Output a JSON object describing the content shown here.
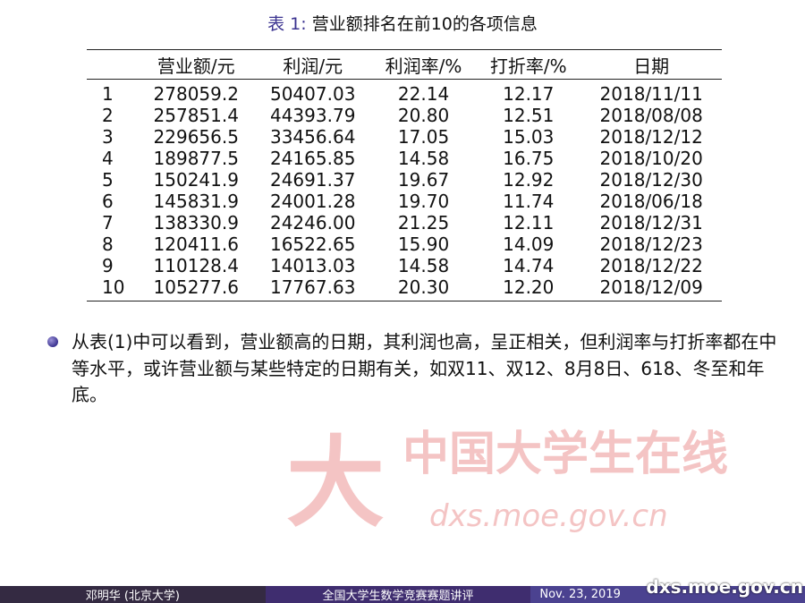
{
  "caption": {
    "label": "表 1:",
    "text": "营业额排名在前10的各项信息"
  },
  "table": {
    "headers": [
      "",
      "营业额/元",
      "利润/元",
      "利润率/%",
      "打折率/%",
      "日期"
    ],
    "rows": [
      [
        "1",
        "278059.2",
        "50407.03",
        "22.14",
        "12.17",
        "2018/11/11"
      ],
      [
        "2",
        "257851.4",
        "44393.79",
        "20.80",
        "12.51",
        "2018/08/08"
      ],
      [
        "3",
        "229656.5",
        "33456.64",
        "17.05",
        "15.03",
        "2018/12/12"
      ],
      [
        "4",
        "189877.5",
        "24165.85",
        "14.58",
        "16.75",
        "2018/10/20"
      ],
      [
        "5",
        "150241.9",
        "24691.37",
        "19.67",
        "12.92",
        "2018/12/30"
      ],
      [
        "6",
        "145831.9",
        "24001.28",
        "19.70",
        "11.74",
        "2018/06/18"
      ],
      [
        "7",
        "138330.9",
        "24246.00",
        "21.25",
        "12.11",
        "2018/12/31"
      ],
      [
        "8",
        "120411.6",
        "16522.65",
        "15.90",
        "14.09",
        "2018/12/23"
      ],
      [
        "9",
        "110128.4",
        "14013.03",
        "14.58",
        "14.74",
        "2018/12/22"
      ],
      [
        "10",
        "105277.6",
        "17767.63",
        "20.30",
        "12.20",
        "2018/12/09"
      ]
    ]
  },
  "bullet_text": "从表(1)中可以看到，营业额高的日期，其利润也高，呈正相关，但利润率与打折率都在中等水平，或许营业额与某些特定的日期有关，如双11、双12、8月8日、618、冬至和年底。",
  "watermark": {
    "cn": "中国大学生在线",
    "url": "dxs.moe.gov.cn"
  },
  "footer": {
    "author": "邓明华 (北京大学)",
    "title": "全国大学生数学竞赛赛题讲评",
    "date": "Nov. 23, 2019"
  },
  "colors": {
    "accent": "#3b3390",
    "footer_left": "#342a42",
    "footer_mid": "#3f2d6f",
    "footer_right": "#4b4290",
    "watermark": "#f4c4c4"
  }
}
